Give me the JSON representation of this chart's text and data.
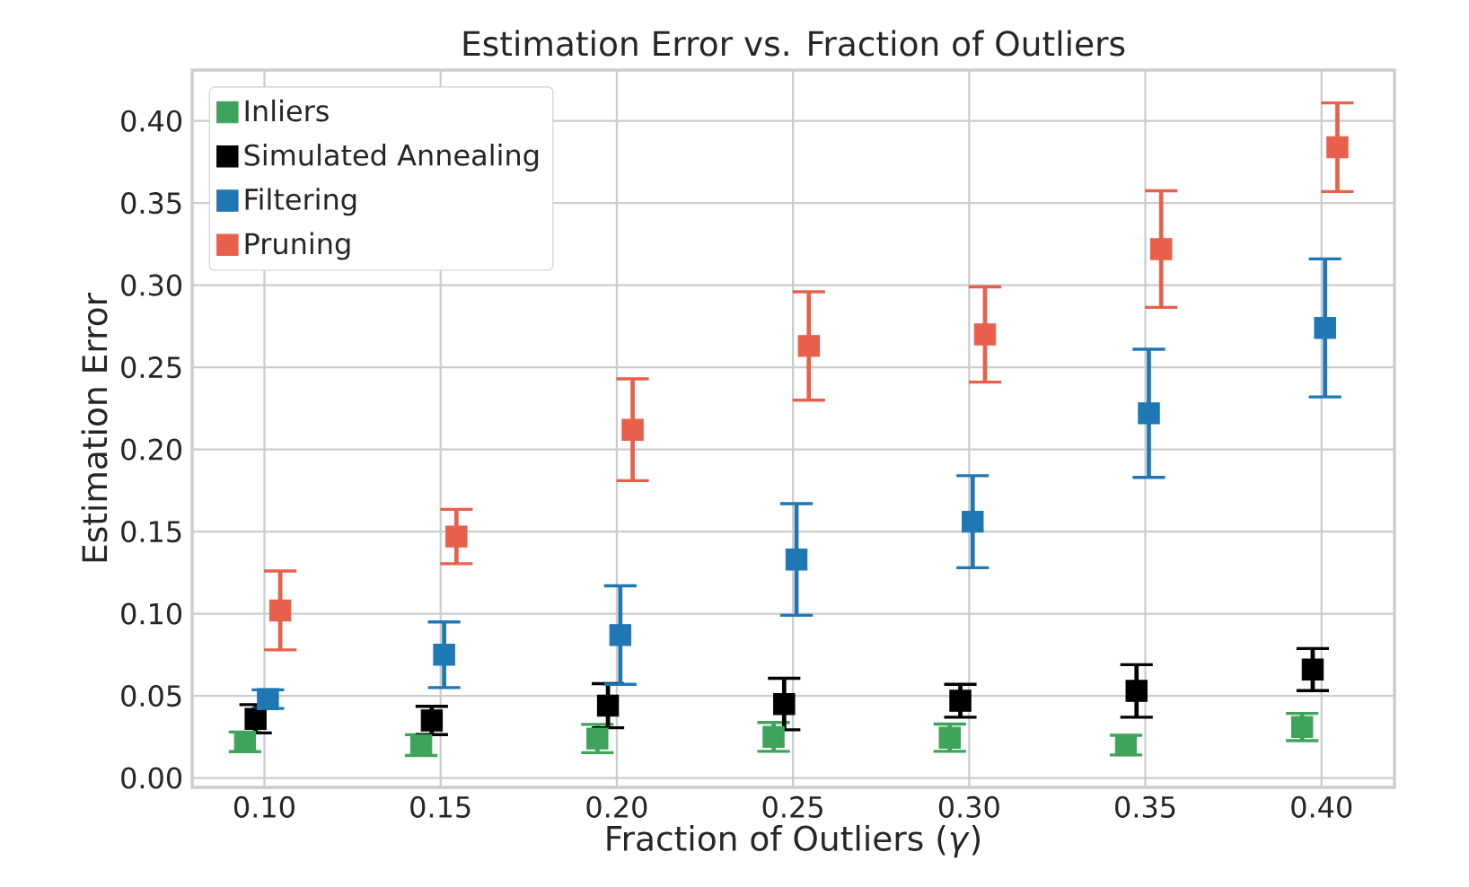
{
  "chart_data": {
    "type": "scatter",
    "title": "Estimation Error vs. Fraction of Outliers",
    "xlabel": "Fraction of Outliers (*γ*)",
    "ylabel": "Estimation Error",
    "xlim": [
      0.0795,
      0.4207
    ],
    "ylim": [
      -0.0057,
      0.431
    ],
    "xticks": [
      {
        "value": 0.1,
        "label": "0.10"
      },
      {
        "value": 0.15,
        "label": "0.15"
      },
      {
        "value": 0.2,
        "label": "0.20"
      },
      {
        "value": 0.25,
        "label": "0.25"
      },
      {
        "value": 0.3,
        "label": "0.30"
      },
      {
        "value": 0.35,
        "label": "0.35"
      },
      {
        "value": 0.4,
        "label": "0.40"
      }
    ],
    "yticks": [
      {
        "value": 0,
        "label": "0.00"
      },
      {
        "value": 0.05,
        "label": "0.05"
      },
      {
        "value": 0.1,
        "label": "0.10"
      },
      {
        "value": 0.15,
        "label": "0.15"
      },
      {
        "value": 0.2,
        "label": "0.20"
      },
      {
        "value": 0.25,
        "label": "0.25"
      },
      {
        "value": 0.3,
        "label": "0.30"
      },
      {
        "value": 0.35,
        "label": "0.35"
      },
      {
        "value": 0.4,
        "label": "0.40"
      }
    ],
    "grid": true,
    "legend": "top left",
    "marker": "square",
    "series": [
      {
        "name": "Inliers",
        "color": "#3fa45b",
        "x": [
          0.0945,
          0.1445,
          0.1945,
          0.2445,
          0.2945,
          0.3445,
          0.3945
        ],
        "values": [
          0.022,
          0.02,
          0.024,
          0.025,
          0.0245,
          0.02,
          0.031
        ],
        "errors": [
          0.006,
          0.0063,
          0.0086,
          0.0088,
          0.0083,
          0.006,
          0.0083
        ]
      },
      {
        "name": "Simulated Annealing",
        "color": "#000000",
        "x": [
          0.0975,
          0.1475,
          0.1975,
          0.2475,
          0.2975,
          0.3475,
          0.3975
        ],
        "values": [
          0.036,
          0.035,
          0.044,
          0.045,
          0.047,
          0.053,
          0.066
        ],
        "errors": [
          0.0086,
          0.0086,
          0.0134,
          0.0157,
          0.01,
          0.016,
          0.0128
        ]
      },
      {
        "name": "Filtering",
        "color": "#1f77b4",
        "x": [
          0.101,
          0.151,
          0.201,
          0.251,
          0.301,
          0.351,
          0.401
        ],
        "values": [
          0.048,
          0.075,
          0.087,
          0.133,
          0.156,
          0.222,
          0.274
        ],
        "errors": [
          0.0057,
          0.02,
          0.03,
          0.034,
          0.028,
          0.039,
          0.042
        ]
      },
      {
        "name": "Pruning",
        "color": "#e8604c",
        "x": [
          0.1045,
          0.1545,
          0.2045,
          0.2545,
          0.3045,
          0.3545,
          0.4045
        ],
        "values": [
          0.102,
          0.147,
          0.212,
          0.263,
          0.27,
          0.322,
          0.384
        ],
        "errors": [
          0.024,
          0.0165,
          0.031,
          0.033,
          0.029,
          0.0355,
          0.027
        ]
      }
    ]
  }
}
